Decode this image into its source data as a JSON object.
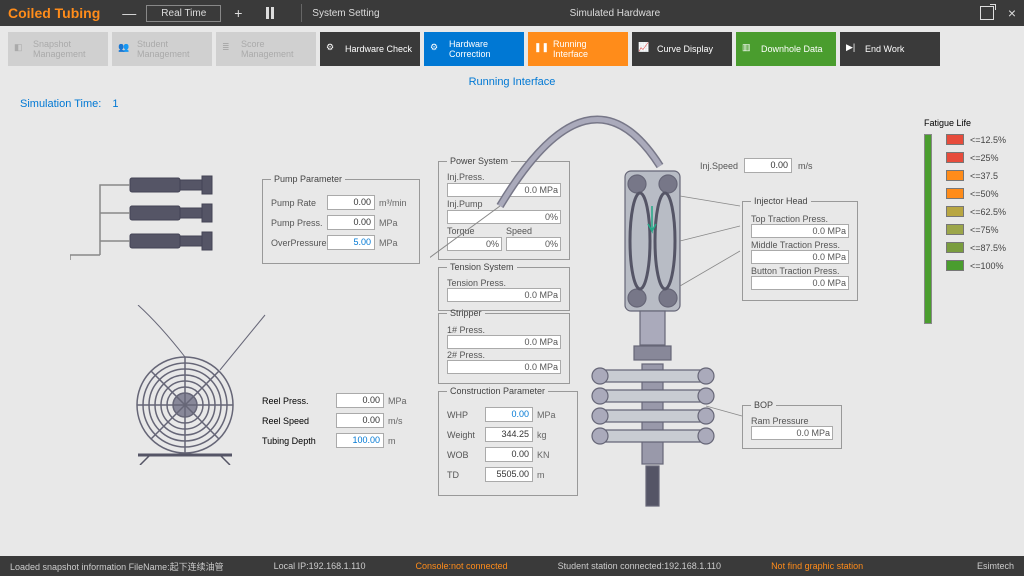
{
  "app": {
    "title": "Coiled Tubing"
  },
  "topbar": {
    "minus": "—",
    "plus": "+",
    "realtime": "Real Time",
    "system_setting": "System Setting",
    "simulated_hw": "Simulated Hardware",
    "close": "×"
  },
  "tabs": [
    {
      "label": "Snapshot Management",
      "cls": "grey"
    },
    {
      "label": "Student Management",
      "cls": "grey"
    },
    {
      "label": "Score Management",
      "cls": "grey"
    },
    {
      "label": "Hardware Check",
      "cls": ""
    },
    {
      "label": "Hardware Correction",
      "cls": "blue"
    },
    {
      "label": "Running Interface",
      "cls": "orange"
    },
    {
      "label": "Curve Display",
      "cls": ""
    },
    {
      "label": "Downhole Data",
      "cls": "green"
    },
    {
      "label": "End Work",
      "cls": ""
    }
  ],
  "running_label": "Running Interface",
  "sim_time": {
    "label": "Simulation Time:",
    "value": "1"
  },
  "pump_param": {
    "legend": "Pump Parameter",
    "rows": [
      {
        "label": "Pump Rate",
        "value": "0.00",
        "unit": "m³/min"
      },
      {
        "label": "Pump Press.",
        "value": "0.00",
        "unit": "MPa"
      },
      {
        "label": "OverPressure",
        "value": "5.00",
        "unit": "MPa",
        "blue": true
      }
    ]
  },
  "reel": {
    "rows": [
      {
        "label": "Reel Press.",
        "value": "0.00",
        "unit": "MPa"
      },
      {
        "label": "Reel Speed",
        "value": "0.00",
        "unit": "m/s"
      },
      {
        "label": "Tubing Depth",
        "value": "100.00",
        "unit": "m",
        "blue": true
      }
    ]
  },
  "power_system": {
    "legend": "Power System",
    "inj_press": {
      "label": "Inj.Press.",
      "value": "0.0 MPa"
    },
    "inj_pump": {
      "label": "Inj.Pump",
      "value": "0%"
    },
    "torque": {
      "label": "Torque",
      "value": "0%"
    },
    "speed": {
      "label": "Speed",
      "value": "0%"
    }
  },
  "tension": {
    "legend": "Tension System",
    "label": "Tension Press.",
    "value": "0.0 MPa"
  },
  "stripper": {
    "legend": "Stripper",
    "rows": [
      {
        "label": "1# Press.",
        "value": "0.0 MPa"
      },
      {
        "label": "2# Press.",
        "value": "0.0 MPa"
      }
    ]
  },
  "construction": {
    "legend": "Construction Parameter",
    "rows": [
      {
        "label": "WHP",
        "value": "0.00",
        "unit": "MPa",
        "blue": true
      },
      {
        "label": "Weight",
        "value": "344.25",
        "unit": "kg"
      },
      {
        "label": "WOB",
        "value": "0.00",
        "unit": "KN"
      },
      {
        "label": "TD",
        "value": "5505.00",
        "unit": "m"
      }
    ]
  },
  "inj_speed": {
    "label": "Inj.Speed",
    "value": "0.00",
    "unit": "m/s"
  },
  "injector_head": {
    "legend": "Injector Head",
    "rows": [
      {
        "label": "Top Traction Press.",
        "value": "0.0 MPa"
      },
      {
        "label": "Middle Traction Press.",
        "value": "0.0 MPa"
      },
      {
        "label": "Button Traction Press.",
        "value": "0.0 MPa"
      }
    ]
  },
  "bop": {
    "legend": "BOP",
    "label": "Ram Pressure",
    "value": "0.0 MPa"
  },
  "fatigue": {
    "label": "Fatigue Life",
    "items": [
      {
        "label": "<=12.5%",
        "color": "#e74c3c"
      },
      {
        "label": "<=25%",
        "color": "#e74c3c"
      },
      {
        "label": "<=37.5",
        "color": "#ff8c1a"
      },
      {
        "label": "<=50%",
        "color": "#ff8c1a"
      },
      {
        "label": "<=62.5%",
        "color": "#b8a642"
      },
      {
        "label": "<=75%",
        "color": "#9ca64a"
      },
      {
        "label": "<=87.5%",
        "color": "#7a9d3e"
      },
      {
        "label": "<=100%",
        "color": "#4a9d2e"
      }
    ]
  },
  "status": {
    "snapshot": "Loaded snapshot information FileName:起下连续油管",
    "local_ip": "Local IP:192.168.1.110",
    "console": "Console:not connected",
    "student": "Student station connected:192.168.1.110",
    "graphic": "Not find graphic station",
    "brand": "Esimtech"
  }
}
